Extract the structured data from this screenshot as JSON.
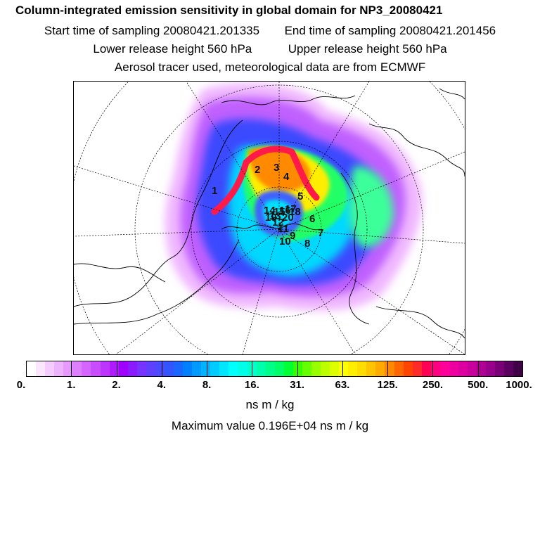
{
  "header": {
    "title": "Column-integrated emission sensitivity in global domain for NP3_20080421",
    "start_label": "Start time of sampling 20080421.201335",
    "end_label": "End time of sampling 20080421.201456",
    "lower_label": "Lower release height  560 hPa",
    "upper_label": "Upper release height  560 hPa",
    "info_line": "Aerosol tracer used, meteorological data are from ECMWF"
  },
  "map": {
    "release_markers": [
      "1",
      "2",
      "3",
      "4",
      "5",
      "6",
      "7",
      "8",
      "9",
      "10",
      "11",
      "12",
      "13",
      "14",
      "15",
      "16",
      "17",
      "18",
      "19",
      "20"
    ]
  },
  "colorbar": {
    "colors": [
      "#ffffff",
      "#fbe6ff",
      "#f4ccff",
      "#eeb3ff",
      "#e699ff",
      "#dd80ff",
      "#d466ff",
      "#c94dff",
      "#bd33ff",
      "#b01aff",
      "#a000ff",
      "#8c1aff",
      "#7733ff",
      "#6040ff",
      "#4a4aff",
      "#3355ff",
      "#1a66ff",
      "#0080ff",
      "#0099ff",
      "#00b3ff",
      "#00ccff",
      "#00e6ff",
      "#00ffff",
      "#00ffe6",
      "#00ffcc",
      "#00ffaa",
      "#00ff88",
      "#00ff66",
      "#00ff33",
      "#33ff00",
      "#66ff00",
      "#99ff00",
      "#bbff00",
      "#ddff00",
      "#ffff00",
      "#ffee00",
      "#ffdd00",
      "#ffc400",
      "#ffaa00",
      "#ff8800",
      "#ff6600",
      "#ff4400",
      "#ff2a2a",
      "#ff0055",
      "#ff0080",
      "#ff0099",
      "#ee00a0",
      "#dd00a0",
      "#c8009c",
      "#b00094",
      "#96008a",
      "#7a0078",
      "#5c0060",
      "#400045"
    ],
    "tick_labels": [
      "0.",
      "1.",
      "2.",
      "4.",
      "8.",
      "16.",
      "31.",
      "63.",
      "125.",
      "250.",
      "500.",
      "1000."
    ],
    "units": "ns m / kg"
  },
  "footer": {
    "max_value": "Maximum value  0.196E+04 ns m / kg"
  }
}
